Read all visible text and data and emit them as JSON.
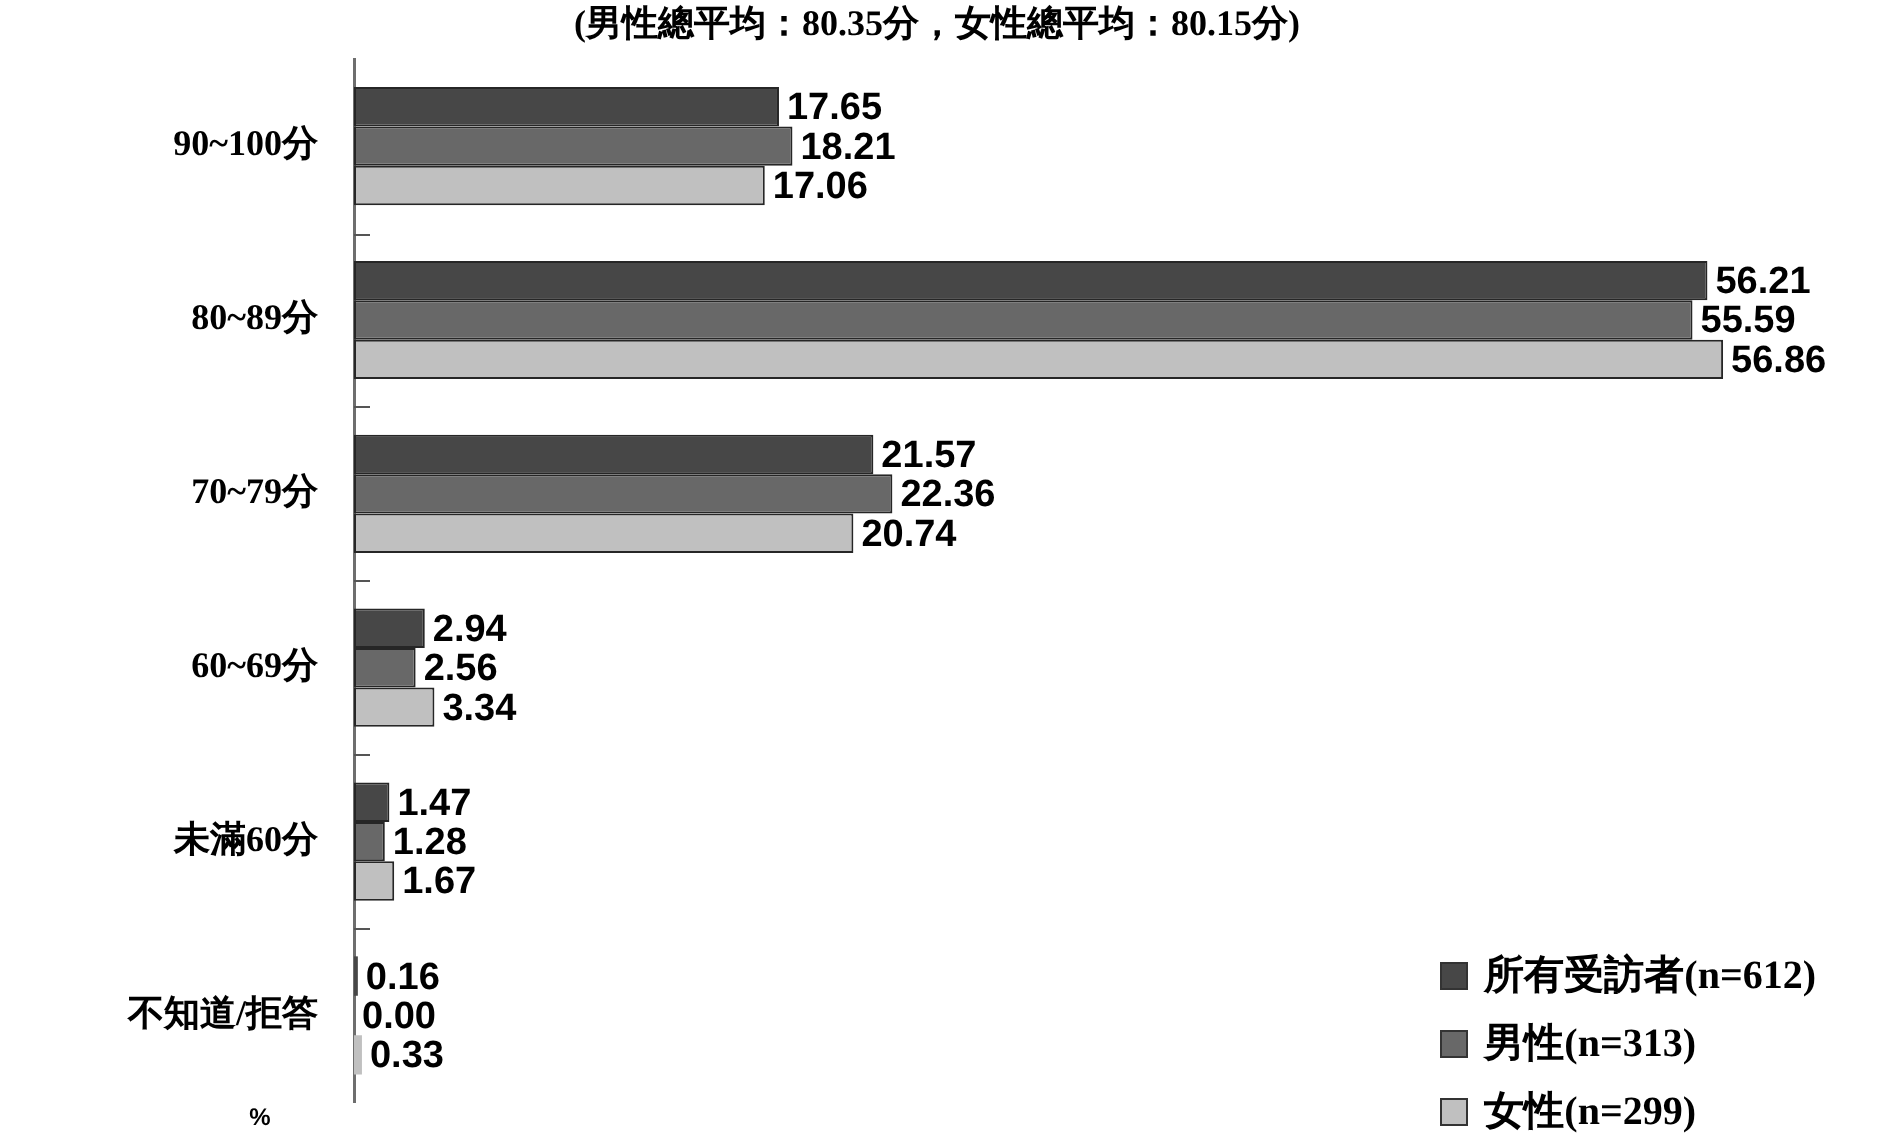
{
  "chart_data": {
    "type": "bar",
    "orientation": "horizontal",
    "title": "(男性總平均：80.35分，女性總平均：80.15分)",
    "xlabel": "%",
    "categories": [
      "90~100分",
      "80~89分",
      "70~79分",
      "60~69分",
      "未滿60分",
      "不知道/拒答"
    ],
    "series": [
      {
        "name": "所有受訪者(n=612)",
        "color": "#474747",
        "values": [
          17.65,
          56.21,
          21.57,
          2.94,
          1.47,
          0.16
        ],
        "value_labels": [
          "17.65",
          "56.21",
          "21.57",
          "2.94",
          "1.47",
          "0.16"
        ]
      },
      {
        "name": "男性(n=313)",
        "color": "#686868",
        "values": [
          18.21,
          55.59,
          22.36,
          2.56,
          1.28,
          0
        ],
        "value_labels": [
          "18.21",
          "55.59",
          "22.36",
          "2.56",
          "1.28",
          "0.00"
        ]
      },
      {
        "name": "女性(n=299)",
        "color": "#c0c0c0",
        "values": [
          17.06,
          56.86,
          20.74,
          3.34,
          1.67,
          0.33
        ],
        "value_labels": [
          "17.06",
          "56.86",
          "20.74",
          "3.34",
          "1.67",
          "0.33"
        ]
      }
    ],
    "legend": "bottom right",
    "grid": false,
    "tick_labels": "y"
  }
}
